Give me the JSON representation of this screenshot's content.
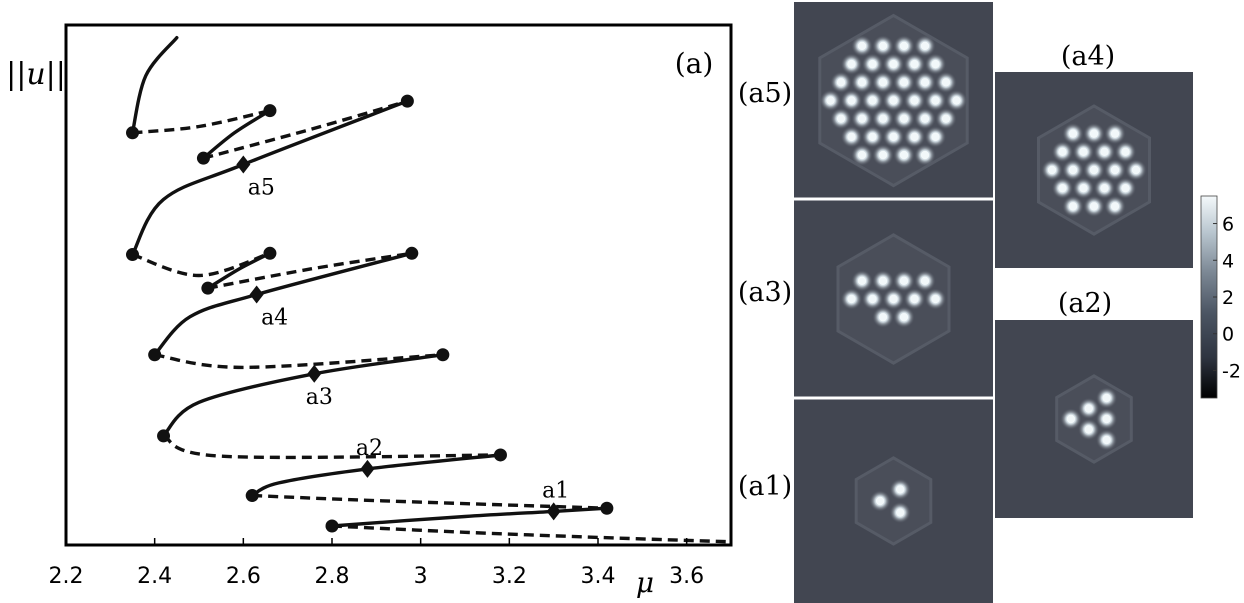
{
  "figure": {
    "panel_label": "(a)",
    "y_axis_label": "||u||",
    "x_axis_label": "μ"
  },
  "chart_data": {
    "type": "line",
    "xlim": [
      2.2,
      3.7
    ],
    "x_ticks": [
      "2.2",
      "2.4",
      "2.6",
      "2.8",
      "3",
      "3.2",
      "3.4",
      "3.6"
    ],
    "y_ticks": [],
    "grid": false,
    "branches": [
      {
        "id": "a1",
        "points": [
          {
            "x": 2.8,
            "y": 0.3
          },
          {
            "x": 3.3,
            "y": 0.53
          },
          {
            "x": 3.42,
            "y": 0.58
          }
        ],
        "stable_path": [
          [
            2.8,
            0.3
          ],
          [
            3.1,
            0.45
          ],
          [
            3.3,
            0.53
          ],
          [
            3.42,
            0.58
          ]
        ],
        "unstable_path": [
          [
            2.8,
            0.3
          ],
          [
            3.1,
            0.2
          ],
          [
            3.4,
            0.12
          ],
          [
            3.7,
            0.05
          ]
        ],
        "marker": {
          "x": 3.3,
          "y": 0.53,
          "label": "a1"
        }
      },
      {
        "id": "a2",
        "points": [
          {
            "x": 2.62,
            "y": 0.78
          },
          {
            "x": 2.88,
            "y": 1.2
          },
          {
            "x": 3.18,
            "y": 1.42
          }
        ],
        "stable_path": [
          [
            2.62,
            0.78
          ],
          [
            2.68,
            0.98
          ],
          [
            2.88,
            1.2
          ],
          [
            3.18,
            1.42
          ]
        ],
        "unstable_path": [
          [
            2.62,
            0.78
          ],
          [
            2.9,
            0.7
          ],
          [
            3.42,
            0.58
          ]
        ],
        "marker": {
          "x": 2.88,
          "y": 1.2,
          "label": "a2"
        }
      },
      {
        "id": "a3",
        "points": [
          {
            "x": 2.42,
            "y": 1.72
          },
          {
            "x": 2.76,
            "y": 2.7
          },
          {
            "x": 3.05,
            "y": 3.0
          }
        ],
        "stable_path": [
          [
            2.42,
            1.72
          ],
          [
            2.5,
            2.25
          ],
          [
            2.76,
            2.7
          ],
          [
            3.05,
            3.0
          ]
        ],
        "unstable_path": [
          [
            2.42,
            1.72
          ],
          [
            2.55,
            1.4
          ],
          [
            3.18,
            1.42
          ]
        ],
        "marker": {
          "x": 2.76,
          "y": 2.7,
          "label": "a3"
        }
      },
      {
        "id": "a4",
        "points": [
          {
            "x": 2.4,
            "y": 3.0
          },
          {
            "x": 2.63,
            "y": 3.95
          },
          {
            "x": 2.98,
            "y": 4.6
          }
        ],
        "stable_path": [
          [
            2.4,
            3.0
          ],
          [
            2.48,
            3.6
          ],
          [
            2.63,
            3.95
          ],
          [
            2.98,
            4.6
          ]
        ],
        "unstable_path": [
          [
            2.4,
            3.0
          ],
          [
            2.6,
            2.8
          ],
          [
            3.05,
            3.0
          ]
        ],
        "marker": {
          "x": 2.63,
          "y": 3.95,
          "label": "a4"
        }
      },
      {
        "id": "a4-inner",
        "points": [
          {
            "x": 2.52,
            "y": 4.05
          },
          {
            "x": 2.66,
            "y": 4.6
          }
        ],
        "stable_path": [
          [
            2.52,
            4.05
          ],
          [
            2.59,
            4.35
          ],
          [
            2.66,
            4.6
          ]
        ],
        "unstable_path": [
          [
            2.52,
            4.05
          ],
          [
            2.75,
            4.35
          ],
          [
            2.98,
            4.6
          ]
        ],
        "marker": null
      },
      {
        "id": "a5",
        "points": [
          {
            "x": 2.35,
            "y": 4.58
          },
          {
            "x": 2.6,
            "y": 6.0
          },
          {
            "x": 2.97,
            "y": 7.0
          }
        ],
        "stable_path": [
          [
            2.35,
            4.58
          ],
          [
            2.42,
            5.45
          ],
          [
            2.6,
            6.0
          ],
          [
            2.97,
            7.0
          ]
        ],
        "unstable_path": [
          [
            2.35,
            4.58
          ],
          [
            2.5,
            4.25
          ],
          [
            2.66,
            4.6
          ]
        ],
        "marker": {
          "x": 2.6,
          "y": 6.0,
          "label": "a5"
        }
      },
      {
        "id": "a5-inner",
        "points": [
          {
            "x": 2.51,
            "y": 6.1
          },
          {
            "x": 2.66,
            "y": 6.85
          }
        ],
        "stable_path": [
          [
            2.51,
            6.1
          ],
          [
            2.58,
            6.5
          ],
          [
            2.66,
            6.85
          ]
        ],
        "unstable_path": [
          [
            2.51,
            6.1
          ],
          [
            2.75,
            6.55
          ],
          [
            2.97,
            7.0
          ]
        ],
        "marker": null
      },
      {
        "id": "top",
        "points": [
          {
            "x": 2.35,
            "y": 6.5
          }
        ],
        "stable_path": [
          [
            2.35,
            6.5
          ],
          [
            2.38,
            7.4
          ],
          [
            2.45,
            8.0
          ]
        ],
        "unstable_path": [
          [
            2.35,
            6.5
          ],
          [
            2.5,
            6.6
          ],
          [
            2.66,
            6.85
          ]
        ],
        "marker": null
      }
    ]
  },
  "insets": [
    {
      "id": "a5",
      "label": "(a5)",
      "spots": 37,
      "rings": 3
    },
    {
      "id": "a4",
      "label": "(a4)",
      "spots": 19,
      "rings": 2
    },
    {
      "id": "a3",
      "label": "(a3)",
      "spots": 12,
      "rings": 2
    },
    {
      "id": "a2",
      "label": "(a2)",
      "spots": 6,
      "rings": 1
    },
    {
      "id": "a1",
      "label": "(a1)",
      "spots": 3,
      "rings": 1
    }
  ],
  "colorbar": {
    "ticks": [
      "6",
      "4",
      "2",
      "0",
      "-2"
    ],
    "range": [
      -3.5,
      7.5
    ],
    "colors": [
      "#000000",
      "#2e3440",
      "#4b5563",
      "#7b8794",
      "#b9c6cf",
      "#f4f9fb"
    ]
  },
  "colors": {
    "curve": "#111111",
    "inset_background": "#424651",
    "spot": "#f2f8fa"
  }
}
